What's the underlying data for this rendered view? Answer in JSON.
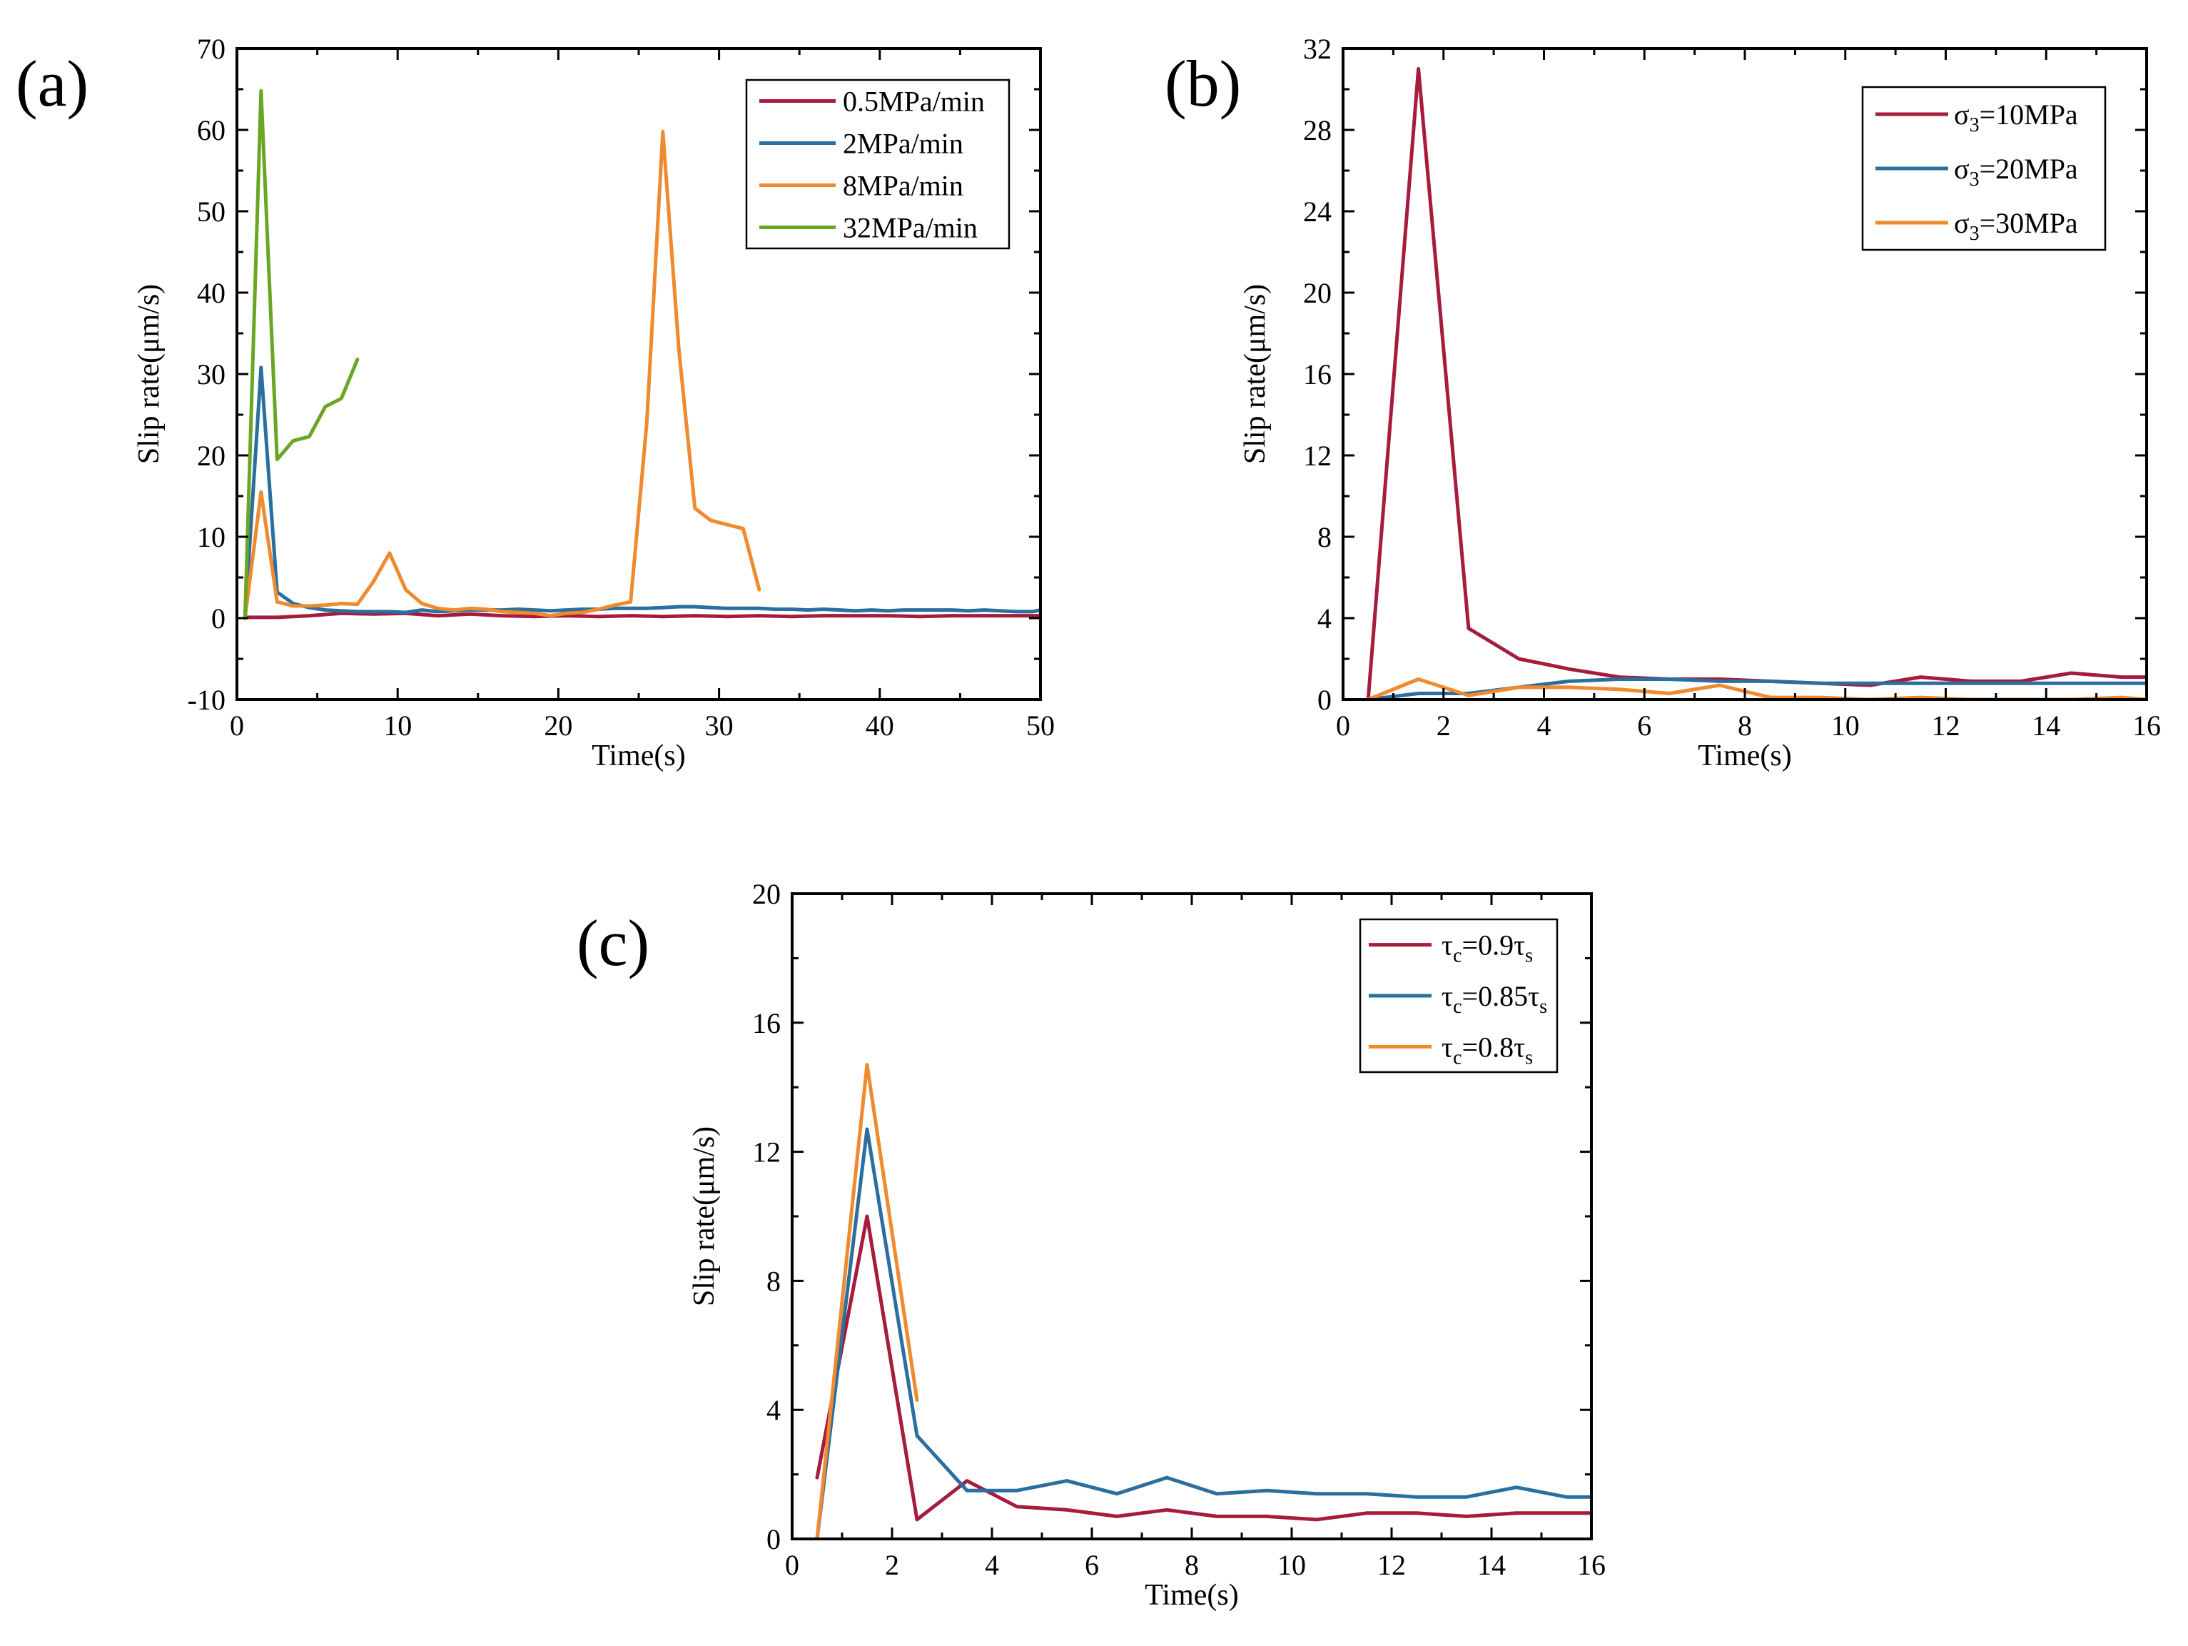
{
  "colors": {
    "red": "#a51c3c",
    "blue": "#2a6f9f",
    "orange": "#ef8a2e",
    "green": "#6aa626"
  },
  "chart_data": [
    {
      "panel": "(a)",
      "type": "line",
      "xlabel": "Time(s)",
      "ylabel": "Slip rate(μm/s)",
      "xlim": [
        0,
        50
      ],
      "ylim": [
        -10,
        70
      ],
      "xticks": [
        0,
        10,
        20,
        30,
        40,
        50
      ],
      "yticks": [
        -10,
        0,
        10,
        20,
        30,
        40,
        50,
        60,
        70
      ],
      "legend_position": "top-right",
      "series": [
        {
          "name": "0.5MPa/min",
          "legend_text": "0.5MPa/min",
          "color": "#a51c3c",
          "x": [
            0.5,
            2.5,
            4.5,
            6.5,
            8.5,
            10.5,
            12.5,
            14.5,
            16.5,
            18.5,
            20.5,
            22.5,
            24.5,
            26.5,
            28.5,
            30.5,
            32.5,
            34.5,
            36.5,
            38.5,
            40.5,
            42.5,
            44.5,
            46.5,
            48.5,
            50
          ],
          "y": [
            0.1,
            0.1,
            0.3,
            0.6,
            0.5,
            0.6,
            0.3,
            0.5,
            0.3,
            0.2,
            0.3,
            0.2,
            0.3,
            0.2,
            0.3,
            0.2,
            0.3,
            0.2,
            0.3,
            0.3,
            0.3,
            0.2,
            0.3,
            0.3,
            0.3,
            0.3
          ]
        },
        {
          "name": "2MPa/min",
          "legend_text": "2MPa/min",
          "color": "#2a6f9f",
          "x": [
            0.5,
            1.5,
            2.5,
            3.5,
            4.5,
            5.5,
            6.5,
            7.5,
            8.5,
            9.5,
            10.5,
            11.5,
            12.5,
            13.5,
            14.5,
            15.5,
            16.5,
            17.5,
            18.5,
            19.5,
            20.5,
            21.5,
            22.5,
            23.5,
            24.5,
            25.5,
            26.5,
            27.5,
            28.5,
            29.5,
            30.5,
            31.5,
            32.5,
            33.5,
            34.5,
            35.5,
            36.5,
            37.5,
            38.5,
            39.5,
            40.5,
            41.5,
            42.5,
            43.5,
            44.5,
            45.5,
            46.5,
            47.5,
            48.5,
            49.5,
            50
          ],
          "y": [
            0,
            30.8,
            3.2,
            1.8,
            1.3,
            1.0,
            0.9,
            0.8,
            0.8,
            0.8,
            0.7,
            1.0,
            0.8,
            0.9,
            1.0,
            1.0,
            1.0,
            1.1,
            1.0,
            0.9,
            1.0,
            1.1,
            1.1,
            1.2,
            1.2,
            1.2,
            1.3,
            1.4,
            1.4,
            1.3,
            1.2,
            1.2,
            1.2,
            1.1,
            1.1,
            1.0,
            1.1,
            1.0,
            0.9,
            1.0,
            0.9,
            1.0,
            1.0,
            1.0,
            1.0,
            0.9,
            1.0,
            0.9,
            0.8,
            0.8,
            1.0
          ]
        },
        {
          "name": "8MPa/min",
          "legend_text": "8MPa/min",
          "color": "#ef8a2e",
          "x": [
            0.5,
            1.5,
            2.5,
            3.5,
            4.5,
            5.5,
            6.5,
            7.5,
            8.5,
            9.5,
            10.5,
            11.5,
            12.5,
            13.5,
            14.5,
            15.5,
            16.5,
            17.5,
            18.5,
            19.5,
            20.5,
            21.5,
            22.5,
            23.5,
            24.5,
            25.5,
            26.5,
            27.5,
            28.5,
            29.5,
            30.5,
            31.5,
            32.5
          ],
          "y": [
            0,
            15.5,
            2.0,
            1.5,
            1.5,
            1.6,
            1.8,
            1.7,
            4.5,
            8.0,
            3.5,
            1.8,
            1.2,
            1.0,
            1.2,
            1.1,
            0.8,
            0.7,
            0.6,
            0.3,
            0.6,
            0.7,
            1.1,
            1.6,
            2.0,
            24.0,
            59.8,
            33.0,
            13.5,
            12.0,
            11.5,
            11.0,
            3.5
          ]
        },
        {
          "name": "32MPa/min",
          "legend_text": "32MPa/min",
          "color": "#6aa626",
          "x": [
            0.5,
            1.5,
            2.5,
            3.5,
            4.5,
            5.5,
            6.5,
            7.5
          ],
          "y": [
            0,
            64.8,
            19.5,
            21.8,
            22.3,
            26.0,
            27.0,
            31.8
          ]
        }
      ]
    },
    {
      "panel": "(b)",
      "type": "line",
      "xlabel": "Time(s)",
      "ylabel": "Slip rate(μm/s)",
      "xlim": [
        0,
        16
      ],
      "ylim": [
        0,
        32
      ],
      "xticks": [
        0,
        2,
        4,
        6,
        8,
        10,
        12,
        14,
        16
      ],
      "yticks": [
        0,
        4,
        8,
        12,
        16,
        20,
        24,
        28,
        32
      ],
      "legend_position": "top-right",
      "series": [
        {
          "name": "σ3=10MPa",
          "legend_prefix": "σ",
          "legend_sub": "3",
          "legend_suffix": "=10MPa",
          "color": "#a51c3c",
          "x": [
            0.5,
            1.5,
            2.5,
            3.5,
            4.5,
            5.5,
            6.5,
            7.5,
            8.5,
            9.5,
            10.5,
            11.5,
            12.5,
            13.5,
            14.5,
            15.5,
            16
          ],
          "y": [
            0,
            31.0,
            3.5,
            2.0,
            1.5,
            1.1,
            1.0,
            1.0,
            0.9,
            0.8,
            0.7,
            1.1,
            0.9,
            0.9,
            1.3,
            1.1,
            1.1
          ]
        },
        {
          "name": "σ3=20MPa",
          "legend_prefix": "σ",
          "legend_sub": "3",
          "legend_suffix": "=20MPa",
          "color": "#2a6f9f",
          "x": [
            0.5,
            1.5,
            2.5,
            3.5,
            4.5,
            5.5,
            6.5,
            7.5,
            8.5,
            9.5,
            10.5,
            11.5,
            12.5,
            13.5,
            14.5,
            15.5,
            16
          ],
          "y": [
            0,
            0.3,
            0.3,
            0.6,
            0.9,
            1.0,
            1.0,
            0.9,
            0.9,
            0.8,
            0.8,
            0.8,
            0.8,
            0.8,
            0.8,
            0.8,
            0.8
          ]
        },
        {
          "name": "σ3=30MPa",
          "legend_prefix": "σ",
          "legend_sub": "3",
          "legend_suffix": "=30MPa",
          "color": "#ef8a2e",
          "x": [
            0.5,
            1.5,
            2.5,
            3.5,
            4.5,
            5.5,
            6.5,
            7.5,
            8.5,
            9.5,
            10.5,
            11.5,
            12.5,
            13.5,
            14.5,
            15.5,
            16
          ],
          "y": [
            0,
            1.0,
            0.2,
            0.6,
            0.6,
            0.5,
            0.3,
            0.7,
            0.1,
            0.1,
            0.0,
            0.1,
            0.0,
            0.0,
            0.0,
            0.1,
            0.0
          ]
        }
      ]
    },
    {
      "panel": "(c)",
      "type": "line",
      "xlabel": "Time(s)",
      "ylabel": "Slip rate(μm/s)",
      "xlim": [
        0,
        16
      ],
      "ylim": [
        0,
        20
      ],
      "xticks": [
        0,
        2,
        4,
        6,
        8,
        10,
        12,
        14,
        16
      ],
      "yticks": [
        0,
        4,
        8,
        12,
        16,
        20
      ],
      "legend_position": "top-right",
      "series": [
        {
          "name": "τc=0.9τs",
          "legend_prefix": "τ",
          "legend_sub": "c",
          "legend_suffix": "=0.9τ",
          "legend_sub2": "s",
          "color": "#a51c3c",
          "x": [
            0.5,
            1.5,
            2.5,
            3.5,
            4.5,
            5.5,
            6.5,
            7.5,
            8.5,
            9.5,
            10.5,
            11.5,
            12.5,
            13.5,
            14.5,
            15.5,
            16
          ],
          "y": [
            1.9,
            10.0,
            0.6,
            1.8,
            1.0,
            0.9,
            0.7,
            0.9,
            0.7,
            0.7,
            0.6,
            0.8,
            0.8,
            0.7,
            0.8,
            0.8,
            0.8
          ]
        },
        {
          "name": "τc=0.85τs",
          "legend_prefix": "τ",
          "legend_sub": "c",
          "legend_suffix": "=0.85τ",
          "legend_sub2": "s",
          "color": "#2a6f9f",
          "x": [
            0.5,
            1.5,
            2.5,
            3.5,
            4.5,
            5.5,
            6.5,
            7.5,
            8.5,
            9.5,
            10.5,
            11.5,
            12.5,
            13.5,
            14.5,
            15.5,
            16
          ],
          "y": [
            0,
            12.7,
            3.2,
            1.5,
            1.5,
            1.8,
            1.4,
            1.9,
            1.4,
            1.5,
            1.4,
            1.4,
            1.3,
            1.3,
            1.6,
            1.3,
            1.3
          ]
        },
        {
          "name": "τc=0.8τs",
          "legend_prefix": "τ",
          "legend_sub": "c",
          "legend_suffix": "=0.8τ",
          "legend_sub2": "s",
          "color": "#ef8a2e",
          "x": [
            0.5,
            1.5,
            2.5
          ],
          "y": [
            0,
            14.7,
            4.3
          ]
        }
      ]
    }
  ]
}
